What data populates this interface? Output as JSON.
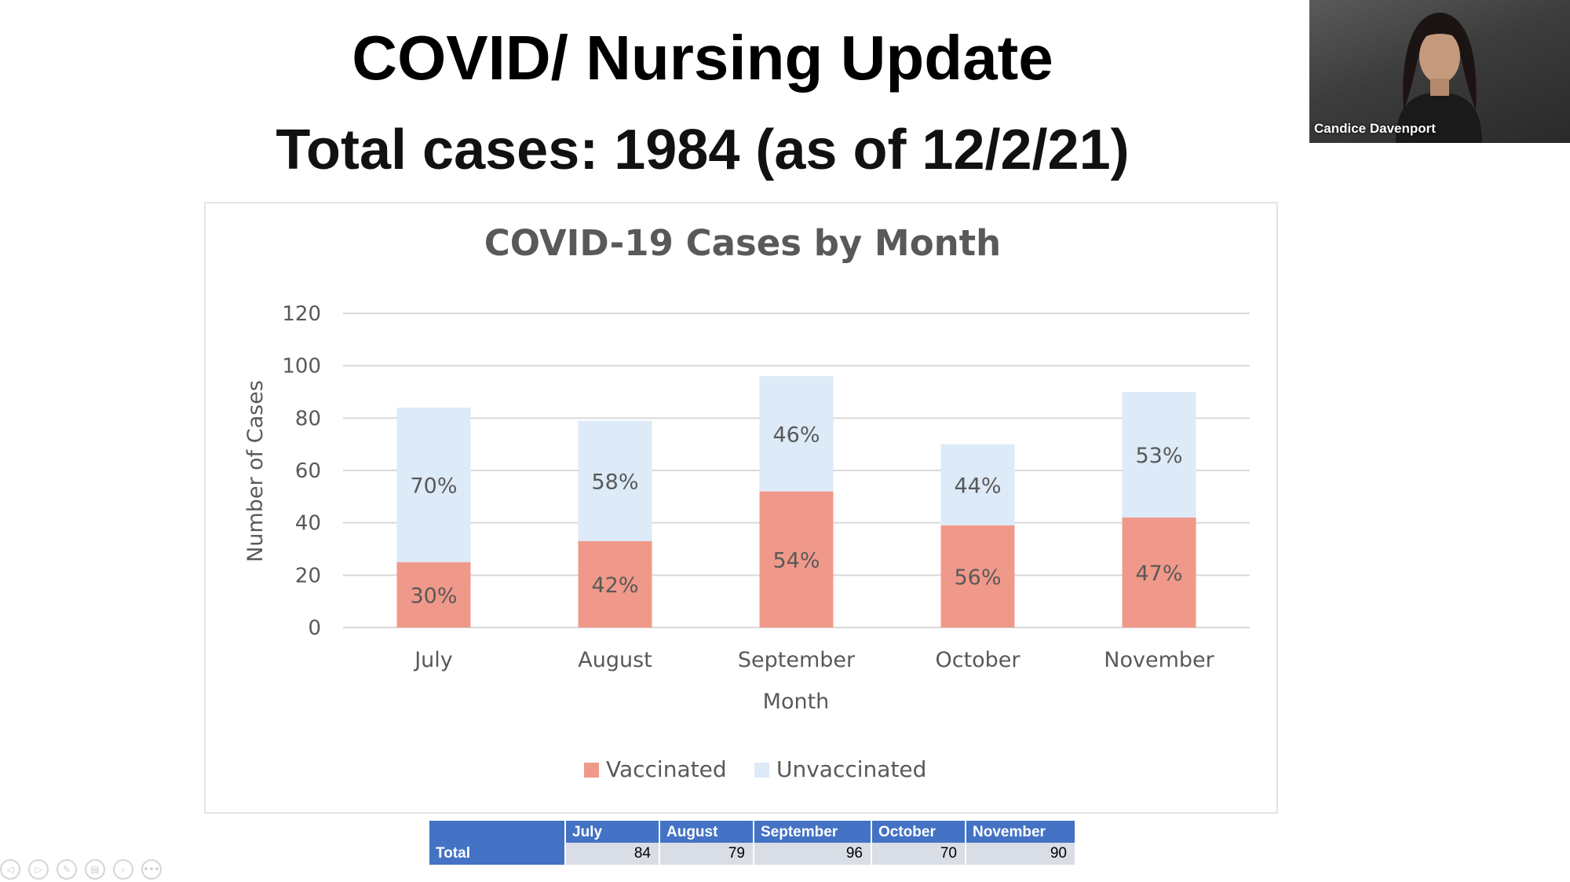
{
  "slide": {
    "title": "COVID/ Nursing Update",
    "subtitle": "Total cases: 1984 (as of 12/2/21)"
  },
  "chart_data": {
    "type": "bar",
    "stacked": true,
    "title": "COVID-19 Cases by Month",
    "xlabel": "Month",
    "ylabel": "Number of Cases",
    "ylim": [
      0,
      120
    ],
    "yticks": [
      0,
      20,
      40,
      60,
      80,
      100,
      120
    ],
    "grid": true,
    "legend": "bottom",
    "categories": [
      "July",
      "August",
      "September",
      "October",
      "November"
    ],
    "series": [
      {
        "name": "Vaccinated",
        "color": "#f0998a",
        "values": [
          25,
          33,
          52,
          39,
          42
        ],
        "labels": [
          "30%",
          "42%",
          "54%",
          "56%",
          "47%"
        ]
      },
      {
        "name": "Unvaccinated",
        "color": "#ddeaf7",
        "values": [
          59,
          46,
          44,
          31,
          48
        ],
        "labels": [
          "70%",
          "58%",
          "46%",
          "44%",
          "53%"
        ]
      }
    ]
  },
  "table": {
    "headers": [
      "",
      "July",
      "August",
      "September",
      "October",
      "November"
    ],
    "row_label": "Total",
    "values": [
      "84",
      "79",
      "96",
      "70",
      "90"
    ]
  },
  "video": {
    "participant_name": "Candice Davenport"
  },
  "toolbar": {
    "icons": [
      "prev-icon",
      "play-icon",
      "pen-icon",
      "slides-icon",
      "zoom-icon",
      "more-icon"
    ],
    "more_label": "•••"
  }
}
